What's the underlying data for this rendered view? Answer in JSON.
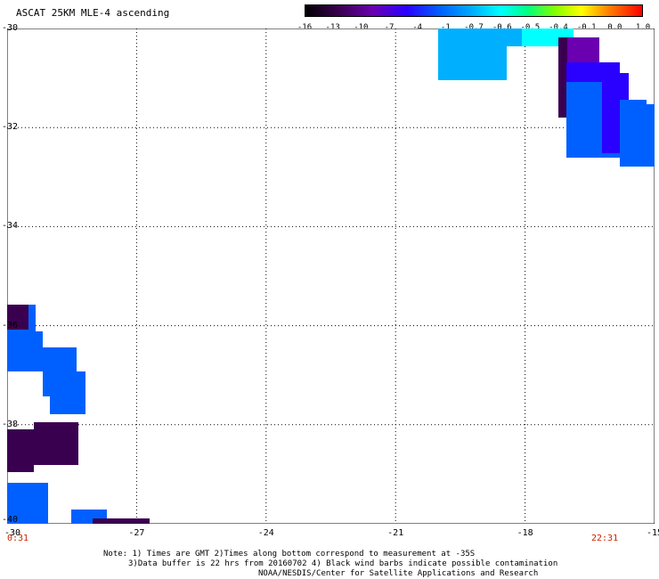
{
  "title": "ASCAT 25KM MLE-4 ascending",
  "colorbar": {
    "ticks": [
      "-16",
      "-13",
      "-10",
      "-7",
      "-4",
      "-1",
      "-0.7",
      "-0.6",
      "-0.5",
      "-0.4",
      "-0.1",
      "0.0",
      "1.0"
    ],
    "colors": [
      "#000000",
      "#3a0050",
      "#6a00b0",
      "#2a00ff",
      "#0060ff",
      "#00b0ff",
      "#00ffff",
      "#00ff80",
      "#80ff00",
      "#ffff00",
      "#ff8000",
      "#ff0000"
    ]
  },
  "axes": {
    "x_ticks": [
      "-27",
      "-24",
      "-21",
      "-18",
      "-15"
    ],
    "y_ticks": [
      "-30",
      "-32",
      "-34",
      "-36",
      "-38",
      "-40"
    ],
    "x_corner": "-30",
    "lon_range": [
      -30,
      -15
    ],
    "lat_range": [
      -40,
      -30
    ]
  },
  "times": {
    "left": "0:31",
    "right": "22:31"
  },
  "notes": {
    "line1": "Note: 1) Times are GMT 2)Times along bottom correspond to measurement at -35S",
    "line2": "3)Data buffer is 22 hrs from 20160702 4) Black wind barbs indicate possible contamination",
    "line3": "NOAA/NESDIS/Center for Satellite Applications and Research"
  }
}
